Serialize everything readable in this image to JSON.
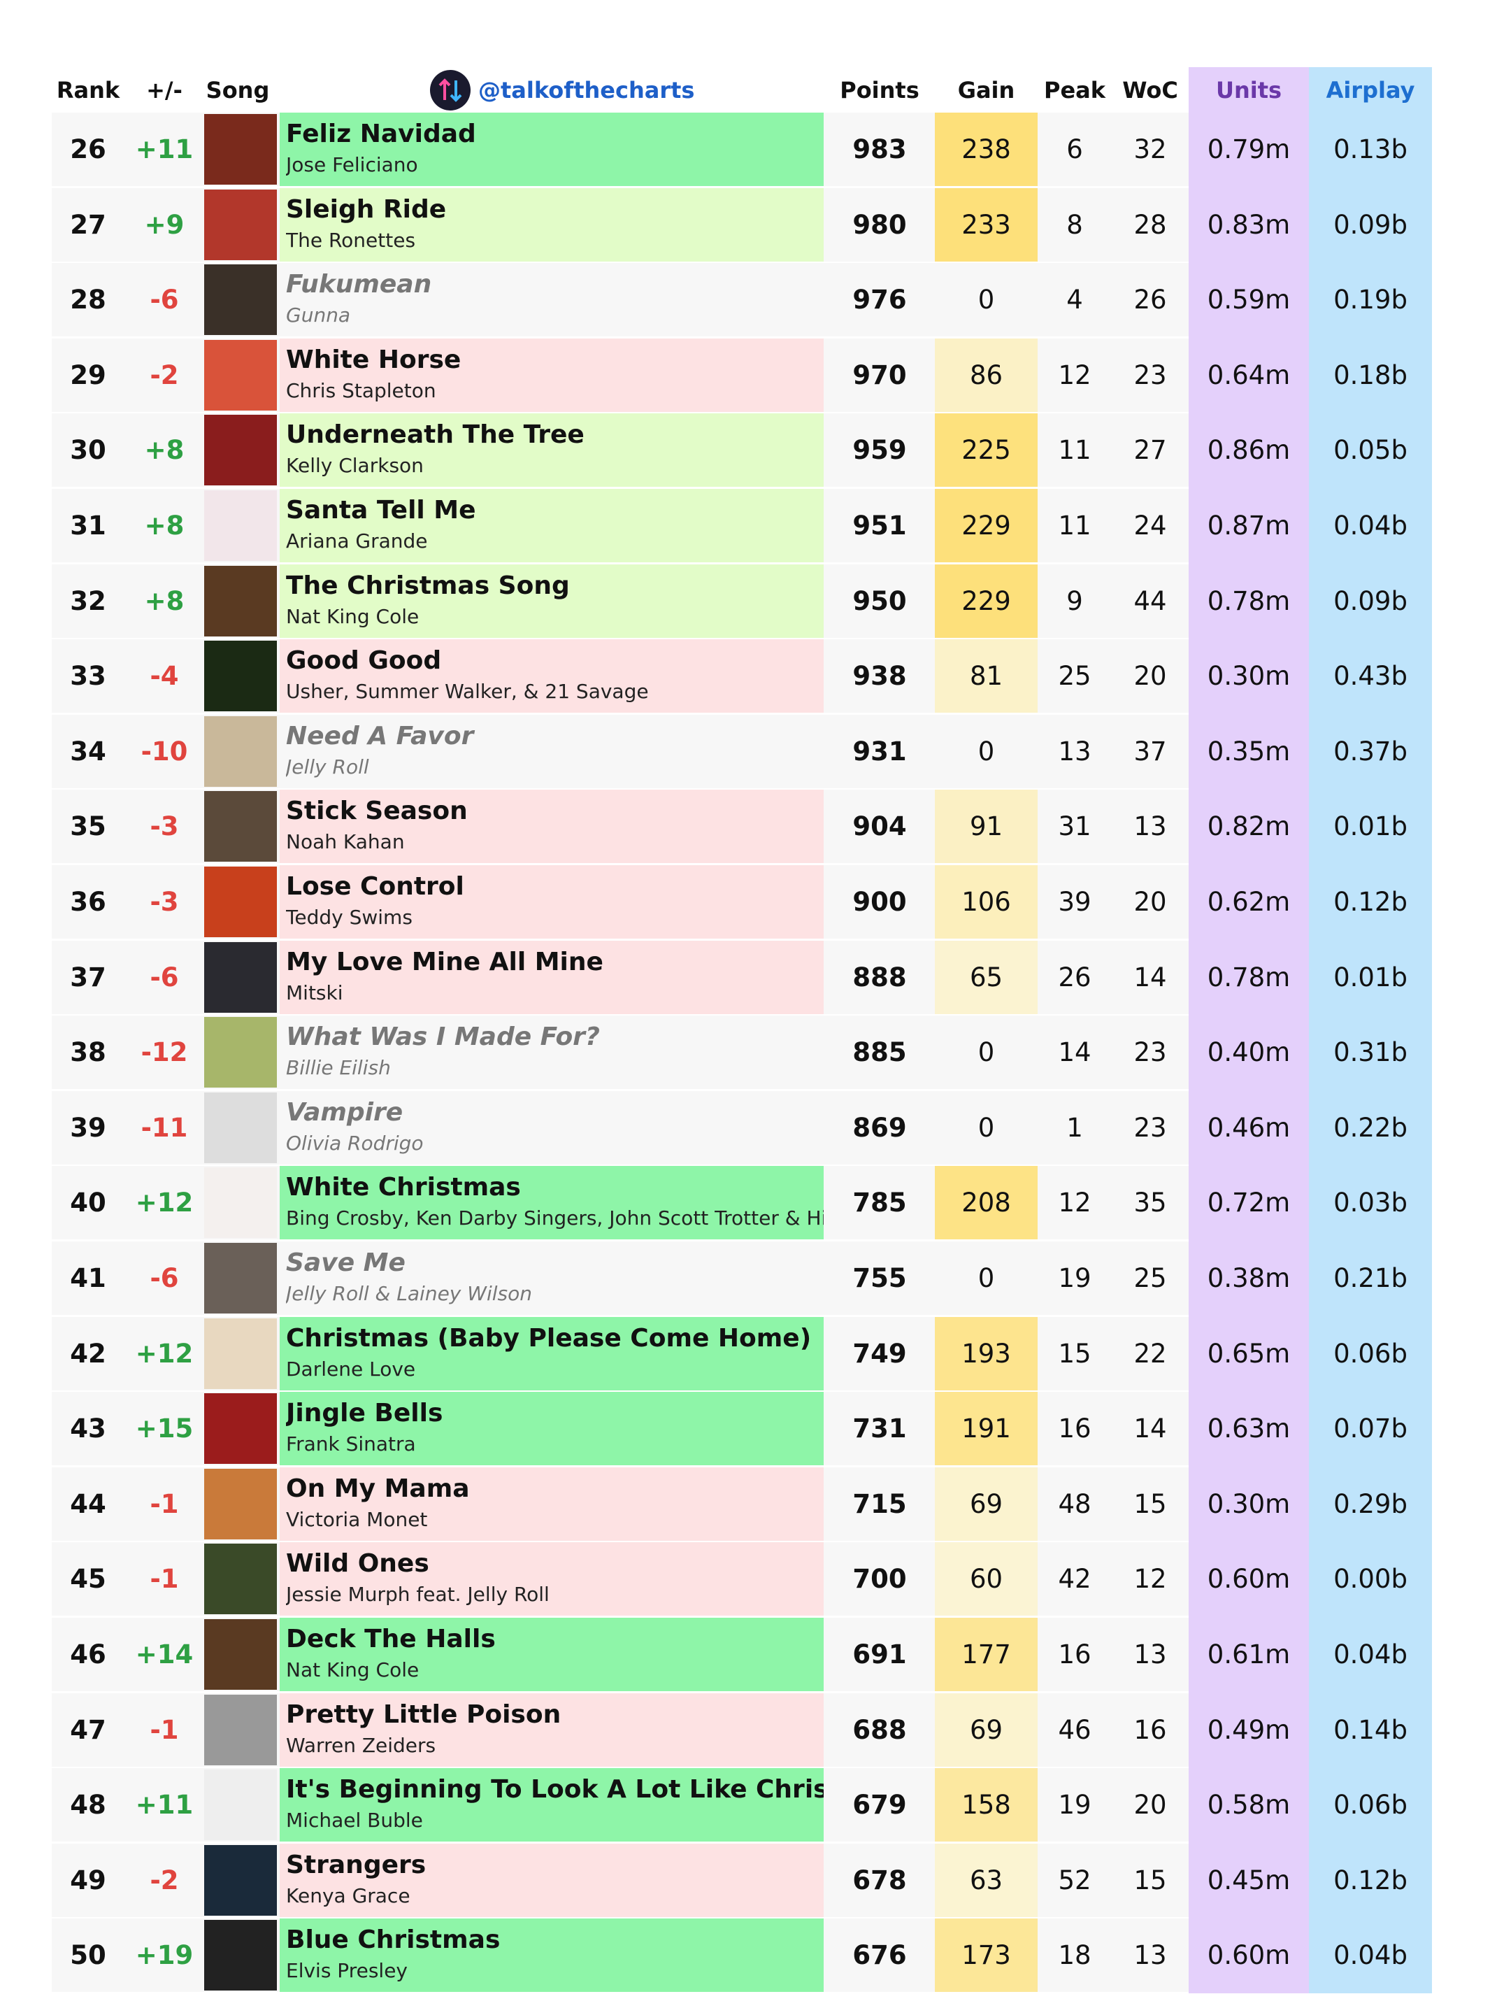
{
  "header": {
    "rank": "Rank",
    "change": "+/-",
    "song": "Song",
    "handle": "@talkofthecharts",
    "points": "Points",
    "gain": "Gain",
    "peak": "Peak",
    "woc": "WoC",
    "units": "Units",
    "airplay": "Airplay"
  },
  "table": {
    "rows": [
      {
        "rank": 26,
        "change": "+11",
        "title": "Feliz Navidad",
        "artist": "Jose Feliciano",
        "points": 983,
        "gain": 238,
        "peak": 6,
        "woc": 32,
        "units": "0.79m",
        "airplay": "0.13b"
      },
      {
        "rank": 27,
        "change": "+9",
        "title": "Sleigh Ride",
        "artist": "The Ronettes",
        "points": 980,
        "gain": 233,
        "peak": 8,
        "woc": 28,
        "units": "0.83m",
        "airplay": "0.09b"
      },
      {
        "rank": 28,
        "change": "-6",
        "title": "Fukumean",
        "artist": "Gunna",
        "points": 976,
        "gain": 0,
        "peak": 4,
        "woc": 26,
        "units": "0.59m",
        "airplay": "0.19b"
      },
      {
        "rank": 29,
        "change": "-2",
        "title": "White Horse",
        "artist": "Chris Stapleton",
        "points": 970,
        "gain": 86,
        "peak": 12,
        "woc": 23,
        "units": "0.64m",
        "airplay": "0.18b"
      },
      {
        "rank": 30,
        "change": "+8",
        "title": "Underneath The Tree",
        "artist": "Kelly Clarkson",
        "points": 959,
        "gain": 225,
        "peak": 11,
        "woc": 27,
        "units": "0.86m",
        "airplay": "0.05b"
      },
      {
        "rank": 31,
        "change": "+8",
        "title": "Santa Tell Me",
        "artist": "Ariana Grande",
        "points": 951,
        "gain": 229,
        "peak": 11,
        "woc": 24,
        "units": "0.87m",
        "airplay": "0.04b"
      },
      {
        "rank": 32,
        "change": "+8",
        "title": "The Christmas Song",
        "artist": "Nat King Cole",
        "points": 950,
        "gain": 229,
        "peak": 9,
        "woc": 44,
        "units": "0.78m",
        "airplay": "0.09b"
      },
      {
        "rank": 33,
        "change": "-4",
        "title": "Good Good",
        "artist": "Usher, Summer Walker, & 21 Savage",
        "points": 938,
        "gain": 81,
        "peak": 25,
        "woc": 20,
        "units": "0.30m",
        "airplay": "0.43b"
      },
      {
        "rank": 34,
        "change": "-10",
        "title": "Need A Favor",
        "artist": "Jelly Roll",
        "points": 931,
        "gain": 0,
        "peak": 13,
        "woc": 37,
        "units": "0.35m",
        "airplay": "0.37b"
      },
      {
        "rank": 35,
        "change": "-3",
        "title": "Stick Season",
        "artist": "Noah Kahan",
        "points": 904,
        "gain": 91,
        "peak": 31,
        "woc": 13,
        "units": "0.82m",
        "airplay": "0.01b"
      },
      {
        "rank": 36,
        "change": "-3",
        "title": "Lose Control",
        "artist": "Teddy Swims",
        "points": 900,
        "gain": 106,
        "peak": 39,
        "woc": 20,
        "units": "0.62m",
        "airplay": "0.12b"
      },
      {
        "rank": 37,
        "change": "-6",
        "title": "My Love Mine All Mine",
        "artist": "Mitski",
        "points": 888,
        "gain": 65,
        "peak": 26,
        "woc": 14,
        "units": "0.78m",
        "airplay": "0.01b"
      },
      {
        "rank": 38,
        "change": "-12",
        "title": "What Was I Made For?",
        "artist": "Billie Eilish",
        "points": 885,
        "gain": 0,
        "peak": 14,
        "woc": 23,
        "units": "0.40m",
        "airplay": "0.31b"
      },
      {
        "rank": 39,
        "change": "-11",
        "title": "Vampire",
        "artist": "Olivia Rodrigo",
        "points": 869,
        "gain": 0,
        "peak": 1,
        "woc": 23,
        "units": "0.46m",
        "airplay": "0.22b"
      },
      {
        "rank": 40,
        "change": "+12",
        "title": "White Christmas",
        "artist": "Bing Crosby, Ken Darby Singers, John Scott Trotter & His Orchestra",
        "points": 785,
        "gain": 208,
        "peak": 12,
        "woc": 35,
        "units": "0.72m",
        "airplay": "0.03b"
      },
      {
        "rank": 41,
        "change": "-6",
        "title": "Save Me",
        "artist": "Jelly Roll & Lainey Wilson",
        "points": 755,
        "gain": 0,
        "peak": 19,
        "woc": 25,
        "units": "0.38m",
        "airplay": "0.21b"
      },
      {
        "rank": 42,
        "change": "+12",
        "title": "Christmas (Baby Please Come Home)",
        "artist": "Darlene Love",
        "points": 749,
        "gain": 193,
        "peak": 15,
        "woc": 22,
        "units": "0.65m",
        "airplay": "0.06b"
      },
      {
        "rank": 43,
        "change": "+15",
        "title": "Jingle Bells",
        "artist": "Frank Sinatra",
        "points": 731,
        "gain": 191,
        "peak": 16,
        "woc": 14,
        "units": "0.63m",
        "airplay": "0.07b"
      },
      {
        "rank": 44,
        "change": "-1",
        "title": "On My Mama",
        "artist": "Victoria Monet",
        "points": 715,
        "gain": 69,
        "peak": 48,
        "woc": 15,
        "units": "0.30m",
        "airplay": "0.29b"
      },
      {
        "rank": 45,
        "change": "-1",
        "title": "Wild Ones",
        "artist": "Jessie Murph feat. Jelly Roll",
        "points": 700,
        "gain": 60,
        "peak": 42,
        "woc": 12,
        "units": "0.60m",
        "airplay": "0.00b"
      },
      {
        "rank": 46,
        "change": "+14",
        "title": "Deck The Halls",
        "artist": "Nat King Cole",
        "points": 691,
        "gain": 177,
        "peak": 16,
        "woc": 13,
        "units": "0.61m",
        "airplay": "0.04b"
      },
      {
        "rank": 47,
        "change": "-1",
        "title": "Pretty Little Poison",
        "artist": "Warren Zeiders",
        "points": 688,
        "gain": 69,
        "peak": 46,
        "woc": 16,
        "units": "0.49m",
        "airplay": "0.14b"
      },
      {
        "rank": 48,
        "change": "+11",
        "title": "It's Beginning To Look A Lot Like Christmas",
        "artist": "Michael Buble",
        "points": 679,
        "gain": 158,
        "peak": 19,
        "woc": 20,
        "units": "0.58m",
        "airplay": "0.06b"
      },
      {
        "rank": 49,
        "change": "-2",
        "title": "Strangers",
        "artist": "Kenya Grace",
        "points": 678,
        "gain": 63,
        "peak": 52,
        "woc": 15,
        "units": "0.45m",
        "airplay": "0.12b"
      },
      {
        "rank": 50,
        "change": "+19",
        "title": "Blue Christmas",
        "artist": "Elvis Presley",
        "points": 676,
        "gain": 173,
        "peak": 18,
        "woc": 13,
        "units": "0.60m",
        "airplay": "0.04b"
      }
    ]
  }
}
